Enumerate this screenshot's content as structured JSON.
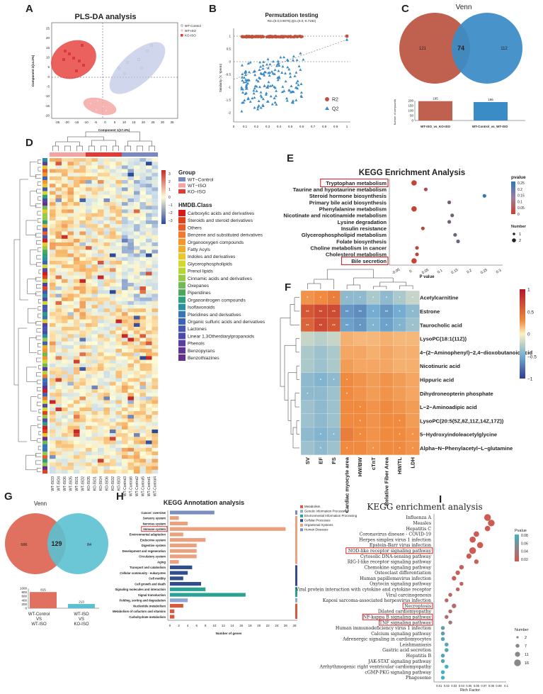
{
  "panels": {
    "a": "A",
    "b": "B",
    "c": "C",
    "d": "D",
    "e": "E",
    "f": "F",
    "g": "G",
    "h": "H",
    "i": "I"
  },
  "colors": {
    "wt_control": "#7b87c2",
    "wt_iso": "#f4a3a0",
    "ko_iso": "#e53935",
    "venn_left": "#c0604f",
    "venn_right": "#3a8cc6",
    "venn_g_left": "#e0705f",
    "venn_g_right": "#5bc1d0"
  },
  "pls": {
    "title": "PLS-DA analysis",
    "xlabel": "Component 1(17.4%)",
    "ylabel": "Component 2(14.2%)",
    "legend": [
      "WT-Control",
      "WT-ISO",
      "KO-ISO"
    ],
    "xticks": [
      "-25",
      "-20",
      "-15",
      "-10",
      "-5",
      "0",
      "5",
      "10",
      "15",
      "20",
      "25",
      "30",
      "35"
    ],
    "yticks": [
      "25",
      "20",
      "15",
      "10",
      "5",
      "0",
      "-5",
      "-10",
      "-15",
      "-20"
    ]
  },
  "perm": {
    "title": "Permutation testing",
    "subtitle": "R2=(0.0,0.9076),Q2=(0.0,-0.7192)",
    "ylabel": "Similarity (Y, Yperm)",
    "legend": [
      "R2",
      "Q2"
    ],
    "xticks": [
      "0",
      "0.1",
      "0.2",
      "0.3",
      "0.4",
      "0.5",
      "0.6",
      "0.7",
      "0.8",
      "0.9",
      "1"
    ],
    "yticks": [
      "1",
      "0.5",
      "0",
      "-0.5",
      "-1",
      "-1.5",
      "-2"
    ]
  },
  "venn_c": {
    "title": "Venn",
    "left": "121",
    "middle": "74",
    "right": "112",
    "bar_values": [
      "195",
      "186"
    ],
    "bar_labels": [
      "WT-ISO_vs_KO-ISO",
      "WT-Control_vs_WT-ISO"
    ],
    "ylabel": "Number of compounds",
    "yticks": [
      "200",
      "150",
      "100",
      "50",
      "0"
    ]
  },
  "heatmap": {
    "scale": [
      "3",
      "2",
      "1",
      "0",
      "−1",
      "−2",
      "−3"
    ],
    "group_title": "Group",
    "groups": [
      "WT−Control",
      "WT−ISO",
      "KO−ISO"
    ],
    "class_title": "HMDB.Class",
    "classes": [
      "Carboxylic acids and derivatives",
      "Steroids and steroid derivatives",
      "Others",
      "Benzene and substituted derivatives",
      "Organooxygen compounds",
      "Fatty Acyls",
      "Indoles and derivatives",
      "Glycerophospholipids",
      "Prenol lipids",
      "Cinnamic acids and derivatives",
      "Oxepanes",
      "Piperidines",
      "Organonitrogen compounds",
      "Isoflavonoids",
      "Pteridines and derivatives",
      "Organic sulfuric acids and derivatives",
      "Lactones",
      "Linear 1,3Otherdiarylpropanoids",
      "Phenols",
      "Benzopyrans",
      "Benzothiazines"
    ],
    "class_colors": [
      "#d7191c",
      "#e4401b",
      "#ec5a2a",
      "#f07a2e",
      "#f5962b",
      "#f0ad2a",
      "#e8c82c",
      "#d4d72e",
      "#b7d334",
      "#94c94c",
      "#6dbb52",
      "#4aa85c",
      "#2f9e7c",
      "#2c8fa1",
      "#3676b7",
      "#3b63b8",
      "#4557b0",
      "#4b4aa8",
      "#553e9f",
      "#5d3494",
      "#64308b"
    ],
    "samples": [
      "WT-ISO3",
      "WT-ISO4",
      "WT-ISO6",
      "WT-ISO5",
      "WT-ISO1",
      "WT-ISO2",
      "KO-ISO5",
      "KO-ISO1",
      "KO-ISO4",
      "KO-ISO6",
      "KO-ISO2",
      "KO-ISO3",
      "WT-Control3",
      "WT-Control6",
      "WT-Control2",
      "WT-Control5",
      "WT-Control1",
      "WT-Control4"
    ]
  },
  "kegg_e": {
    "title": "KEGG Enrichment Analysis",
    "xlabel": "P value",
    "xticks": [
      "-0.05",
      "0",
      "0.05",
      "0.1",
      "0.15",
      "0.2",
      "0.25",
      "0.3"
    ],
    "pvalue_title": "pvalue",
    "pvalue_ticks": [
      "0.25",
      "0.2",
      "0.15",
      "0.1",
      "0.05",
      "0"
    ],
    "number_title": "Number",
    "number_ticks": [
      "1",
      "2"
    ],
    "pathways": [
      "Tryptophan metabolism",
      "Taurine and hypotaurine metabolism",
      "Steroid hormone biosynthesis",
      "Primary bile acid biosynthesis",
      "Phenylalanine metabolism",
      "Nicotinate and nicotinamide metabolism",
      "Lysine degradation",
      "Insulin resistance",
      "Glycerophospholipid metabolism",
      "Folate biosynthesis",
      "Choline metabolism in cancer",
      "Cholesterol metabolism",
      "Bile secretion"
    ],
    "pvalues": [
      0.01,
      0.05,
      0.25,
      0.13,
      0.01,
      0.14,
      0.13,
      0.04,
      0.15,
      0.16,
      0.02,
      0.02,
      0.01
    ],
    "numbers": [
      2,
      1,
      1,
      1,
      2,
      1,
      1,
      1,
      1,
      1,
      1,
      1,
      2
    ],
    "highlighted": [
      0,
      12
    ]
  },
  "corr": {
    "scale": [
      "1",
      "0.5",
      "0",
      "−0.5",
      "−1"
    ],
    "metabolites": [
      "Acetylcarnitine",
      "Estrone",
      "Taurocholic acid",
      "LysoPC(18:1(11Z))",
      "4−(2−Aminophenyl)−2,4−dioxobutanoic acid",
      "Nicotinuric acid",
      "Hippuric acid",
      "Dihydroneopterin phosphate",
      "L−2−Aminoadipic acid",
      "LysoPC(20:5(5Z,8Z,11Z,14Z,17Z))",
      "5−Hydroxyindoleacetylglycine",
      "Alpha−N−Phenylacetyl−L−glutamine"
    ],
    "variables": [
      "SV",
      "EF",
      "FS",
      "Cardiac myocyte area",
      "HW/BW",
      "cTnT",
      "Relative Fiber Area",
      "HW/TL",
      "LDH"
    ],
    "values": [
      [
        0.5,
        0.55,
        0.6,
        -0.4,
        -0.4,
        -0.3,
        -0.4,
        -0.3,
        -0.2
      ],
      [
        0.75,
        0.8,
        0.8,
        -0.6,
        -0.65,
        -0.5,
        -0.6,
        -0.5,
        -0.4
      ],
      [
        0.7,
        0.8,
        0.75,
        -0.55,
        -0.6,
        -0.45,
        -0.55,
        -0.45,
        -0.35
      ],
      [
        -0.2,
        -0.25,
        -0.2,
        0.35,
        0.3,
        0.3,
        0.35,
        0.3,
        0.3
      ],
      [
        -0.3,
        -0.35,
        -0.3,
        0.4,
        0.4,
        0.35,
        0.4,
        0.35,
        0.35
      ],
      [
        -0.3,
        -0.35,
        -0.3,
        0.45,
        0.4,
        0.4,
        0.4,
        0.35,
        0.35
      ],
      [
        -0.4,
        -0.45,
        -0.4,
        0.55,
        0.5,
        0.45,
        0.5,
        0.45,
        0.4
      ],
      [
        -0.4,
        -0.4,
        -0.35,
        0.55,
        0.5,
        0.45,
        0.5,
        0.45,
        0.4
      ],
      [
        -0.35,
        -0.4,
        -0.35,
        0.55,
        0.55,
        0.5,
        0.55,
        0.5,
        0.45
      ],
      [
        -0.35,
        -0.4,
        -0.35,
        0.55,
        0.55,
        0.5,
        0.55,
        0.55,
        0.45
      ],
      [
        -0.4,
        -0.45,
        -0.4,
        0.6,
        0.55,
        0.5,
        0.55,
        0.55,
        0.5
      ],
      [
        -0.35,
        -0.4,
        -0.35,
        0.55,
        0.55,
        0.5,
        0.55,
        0.55,
        0.5
      ]
    ],
    "stars": [
      [
        1,
        1,
        1,
        1,
        1,
        1,
        1,
        1,
        1
      ],
      [
        2,
        2,
        2,
        2,
        2,
        1,
        2,
        1,
        1
      ],
      [
        2,
        2,
        2,
        2,
        1,
        1,
        1,
        1,
        1
      ],
      [
        0,
        0,
        0,
        0,
        0,
        0,
        0,
        0,
        0
      ],
      [
        0,
        0,
        0,
        0,
        0,
        0,
        0,
        0,
        0
      ],
      [
        0,
        0,
        0,
        0,
        0,
        0,
        0,
        0,
        0
      ],
      [
        0,
        1,
        1,
        1,
        0,
        0,
        0,
        0,
        0
      ],
      [
        1,
        0,
        0,
        1,
        0,
        0,
        0,
        0,
        0
      ],
      [
        0,
        0,
        0,
        0,
        1,
        0,
        0,
        0,
        0
      ],
      [
        0,
        0,
        0,
        0,
        1,
        0,
        0,
        1,
        0
      ],
      [
        0,
        1,
        1,
        0,
        1,
        0,
        0,
        1,
        1
      ],
      [
        0,
        1,
        0,
        1,
        0,
        1,
        0,
        1,
        1
      ]
    ],
    "star_char": "*"
  },
  "venn_g": {
    "title": "Venn",
    "left": "686",
    "middle": "129",
    "right": "84",
    "bar_values": [
      "815",
      "213"
    ],
    "bar_labels_1": [
      "WT-Control",
      "VS",
      "WT-ISO"
    ],
    "bar_labels_2": [
      "WT-ISO",
      "VS",
      "KO-ISO"
    ],
    "yticks": [
      "1000",
      "800",
      "600",
      "400",
      "200",
      "0"
    ]
  },
  "kegg_h": {
    "title": "KEGG Annotation analysis",
    "xlabel": "Number of genes",
    "xticks": [
      "0",
      "2",
      "4",
      "6",
      "8",
      "10",
      "12",
      "14",
      "16",
      "18",
      "20",
      "22",
      "24",
      "26",
      "28"
    ],
    "legend": [
      "Metabolism",
      "Genetic Information Processing",
      "Environmental Information Processing",
      "Cellular Processes",
      "Organismal Systems",
      "Human Diseases"
    ],
    "legend_colors": [
      "#d9583b",
      "#8fa6d3",
      "#2aa293",
      "#314d8c",
      "#e9a17e",
      "#7b8fbf"
    ],
    "terms": [
      "Cancer: overview",
      "Sensory system",
      "Nervous system",
      "Immune system",
      "Environmental adaptation",
      "Endocrine system",
      "Digestive system",
      "Development and regeneration",
      "Circulatory system",
      "Aging",
      "Transport and catabolism",
      "Cellular community - eukaryotes",
      "Cell motility",
      "Cell growth and death",
      "Signaling molecules and interaction",
      "Signal transduction",
      "Folding, sorting and degradation",
      "Nucleotide metabolism",
      "Metabolism of cofactors and vitamins",
      "Carbohydrate metabolism"
    ],
    "counts": [
      10,
      2,
      4,
      26,
      3,
      8,
      6,
      6,
      6,
      2,
      5,
      4,
      3,
      7,
      8,
      17,
      4,
      3,
      1,
      1
    ],
    "category": [
      5,
      4,
      4,
      4,
      4,
      4,
      4,
      4,
      4,
      4,
      3,
      3,
      3,
      3,
      2,
      2,
      1,
      0,
      0,
      0
    ],
    "highlighted": [
      3
    ]
  },
  "kegg_i": {
    "title": "KEGG enrichment analysis",
    "xlabel": "Rich Factor",
    "xticks": [
      "0.01",
      "0.02",
      "0.03",
      "0.04",
      "0.05",
      "0.06",
      "0.07",
      "0.08",
      "0.09",
      "0.1"
    ],
    "pvalue_title": "Pvalue",
    "pvalue_ticks": [
      "0.08",
      "0.06",
      "0.04",
      "0.02"
    ],
    "count_title": "Number",
    "count_ticks": [
      "2",
      "7",
      "11",
      "16"
    ],
    "pathways": [
      "Influenza A",
      "Measles",
      "Hepatitis C",
      "Coronavirus disease - COVID-19",
      "Herpes simplex virus 1 infection",
      "Epstein-Barr virus infection",
      "NOD-like receptor signaling pathway",
      "Cytosolic DNA-sensing pathway",
      "RIG-I-like receptor signaling pathway",
      "Chemokine signaling pathway",
      "Osteoclast differentiation",
      "Human papillomavirus infection",
      "Oxytocin signaling pathway",
      "Viral protein interaction with cytokine and cytokine receptor",
      "Viral carcinogenesis",
      "Kaposi sarcoma-associated herpesvirus infection",
      "Necroptosis",
      "Dilated cardiomyopathy",
      "NF-kappa B signaling pathway",
      "TNF signaling pathway",
      "Human immunodeficiency virus 1 infection",
      "Calcium signaling pathway",
      "Adrenergic signaling in cardiomyocytes",
      "Leishmaniasis",
      "Gastric acid secretion",
      "Hepatitis B",
      "JAK-STAT signaling pathway",
      "Arrhythmogenic right ventricular cardiomyopathy",
      "cGMP-PKG signaling pathway",
      "Phagosome"
    ],
    "rich": [
      0.075,
      0.08,
      0.075,
      0.06,
      0.055,
      0.065,
      0.055,
      0.05,
      0.06,
      0.04,
      0.035,
      0.03,
      0.04,
      0.035,
      0.025,
      0.02,
      0.03,
      0.025,
      0.02,
      0.025,
      0.015,
      0.015,
      0.015,
      0.02,
      0.02,
      0.015,
      0.015,
      0.02,
      0.015,
      0.015
    ],
    "pvalue": [
      0.005,
      0.005,
      0.005,
      0.005,
      0.005,
      0.005,
      0.005,
      0.005,
      0.01,
      0.01,
      0.01,
      0.01,
      0.015,
      0.015,
      0.015,
      0.02,
      0.02,
      0.02,
      0.02,
      0.03,
      0.06,
      0.06,
      0.07,
      0.07,
      0.07,
      0.07,
      0.07,
      0.08,
      0.08,
      0.08
    ],
    "count": [
      16,
      16,
      12,
      12,
      14,
      14,
      16,
      11,
      9,
      9,
      9,
      9,
      7,
      7,
      7,
      7,
      9,
      7,
      7,
      7,
      7,
      7,
      7,
      7,
      7,
      7,
      7,
      7,
      7,
      7
    ],
    "highlighted": [
      6,
      16,
      18,
      19
    ]
  }
}
